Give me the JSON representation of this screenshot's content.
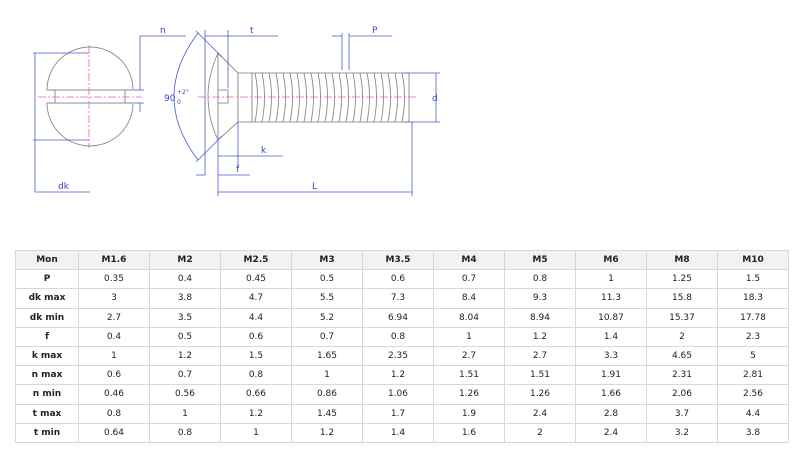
{
  "drawing": {
    "labels": {
      "n": "n",
      "t": "t",
      "P": "P",
      "d": "d",
      "k": "k",
      "f": "f",
      "L": "L",
      "dk": "dk",
      "angle": "90",
      "angle_upper": "+2°",
      "angle_lower": "0"
    },
    "colors": {
      "dimension": "#4a5ad8",
      "centerline": "#e060c8",
      "outline": "#8a8a8a"
    }
  },
  "table": {
    "corner": "Mon",
    "columns": [
      "M1.6",
      "M2",
      "M2.5",
      "M3",
      "M3.5",
      "M4",
      "M5",
      "M6",
      "M8",
      "M10"
    ],
    "rows": [
      {
        "label": "P",
        "values": [
          "0.35",
          "0.4",
          "0.45",
          "0.5",
          "0.6",
          "0.7",
          "0.8",
          "1",
          "1.25",
          "1.5"
        ]
      },
      {
        "label": "dk max",
        "values": [
          "3",
          "3.8",
          "4.7",
          "5.5",
          "7.3",
          "8.4",
          "9.3",
          "11.3",
          "15.8",
          "18.3"
        ]
      },
      {
        "label": "dk min",
        "values": [
          "2.7",
          "3.5",
          "4.4",
          "5.2",
          "6.94",
          "8.04",
          "8.94",
          "10.87",
          "15.37",
          "17.78"
        ]
      },
      {
        "label": "f",
        "values": [
          "0.4",
          "0.5",
          "0.6",
          "0.7",
          "0.8",
          "1",
          "1.2",
          "1.4",
          "2",
          "2.3"
        ]
      },
      {
        "label": "k max",
        "values": [
          "1",
          "1.2",
          "1.5",
          "1.65",
          "2.35",
          "2.7",
          "2.7",
          "3.3",
          "4.65",
          "5"
        ]
      },
      {
        "label": "n max",
        "values": [
          "0.6",
          "0.7",
          "0.8",
          "1",
          "1.2",
          "1.51",
          "1.51",
          "1.91",
          "2.31",
          "2.81"
        ]
      },
      {
        "label": "n min",
        "values": [
          "0.46",
          "0.56",
          "0.66",
          "0.86",
          "1.06",
          "1.26",
          "1.26",
          "1.66",
          "2.06",
          "2.56"
        ]
      },
      {
        "label": "t max",
        "values": [
          "0.8",
          "1",
          "1.2",
          "1.45",
          "1.7",
          "1.9",
          "2.4",
          "2.8",
          "3.7",
          "4.4"
        ]
      },
      {
        "label": "t min",
        "values": [
          "0.64",
          "0.8",
          "1",
          "1.2",
          "1.4",
          "1.6",
          "2",
          "2.4",
          "3.2",
          "3.8"
        ]
      }
    ]
  }
}
